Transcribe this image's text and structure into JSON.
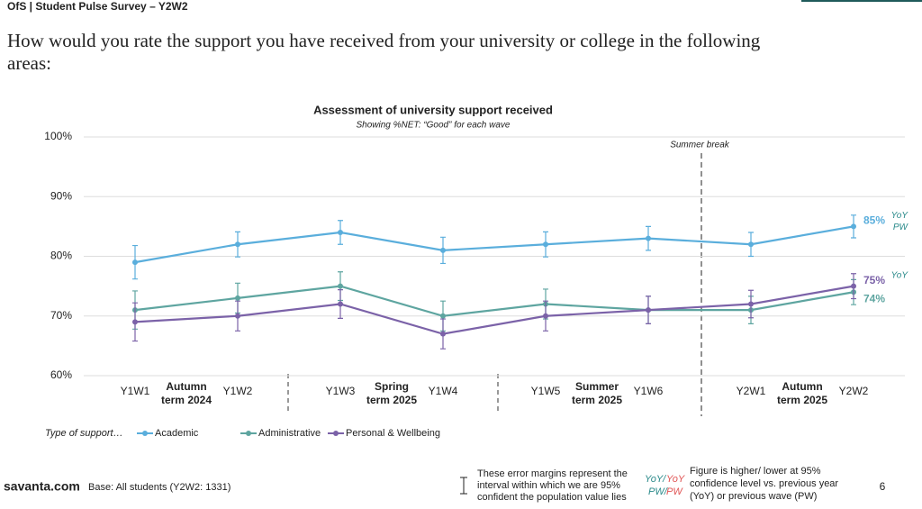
{
  "header": {
    "title": "OfS | Student Pulse Survey – Y2W2",
    "question": [
      "How would you rate the support you have received from your university or college in the following",
      "areas:"
    ]
  },
  "chart_data": {
    "type": "line",
    "title": "Assessment of university support received",
    "subtitle": "Showing %NET: “Good” for each wave",
    "categories": [
      "Y1W1",
      "Y1W2",
      "Y1W3",
      "Y1W4",
      "Y1W5",
      "Y1W6",
      "Y2W1",
      "Y2W2"
    ],
    "groups": [
      {
        "lines": [
          "Autumn",
          "term 2024"
        ]
      },
      {
        "lines": [
          "Spring",
          "term 2025"
        ]
      },
      {
        "lines": [
          "Summer",
          "term 2025"
        ]
      },
      {
        "lines": [
          "Autumn",
          "term 2025"
        ]
      }
    ],
    "break_label": "Summer break",
    "legend_title": "Type of support…",
    "series": [
      {
        "name": "Academic",
        "color": "#5aaedc",
        "values": [
          79,
          82,
          84,
          81,
          82,
          83,
          82,
          85
        ],
        "errors": [
          2.8,
          2.1,
          2.0,
          2.2,
          2.1,
          2.0,
          2.0,
          1.9
        ],
        "value_labels": [
          null,
          null,
          null,
          null,
          null,
          null,
          null,
          "85%"
        ],
        "significance": [
          "YoY",
          "PW"
        ]
      },
      {
        "name": "Administrative",
        "color": "#5ea5a0",
        "values": [
          71,
          73,
          75,
          70,
          72,
          71,
          71,
          74
        ],
        "errors": [
          3.2,
          2.5,
          2.4,
          2.5,
          2.5,
          2.3,
          2.3,
          2.1
        ],
        "value_labels": [
          null,
          null,
          null,
          null,
          null,
          null,
          null,
          "74%"
        ],
        "significance": []
      },
      {
        "name": "Personal & Wellbeing",
        "color": "#7b62a8",
        "values": [
          69,
          70,
          72,
          67,
          70,
          71,
          72,
          75
        ],
        "errors": [
          3.2,
          2.5,
          2.4,
          2.5,
          2.5,
          2.3,
          2.3,
          2.1
        ],
        "value_labels": [
          null,
          null,
          null,
          null,
          null,
          null,
          null,
          "75%"
        ],
        "significance": [
          "YoY"
        ]
      }
    ],
    "ylim": [
      60,
      100
    ],
    "yticks": [
      {
        "value": 60,
        "label": "60%"
      },
      {
        "value": 70,
        "label": "70%"
      },
      {
        "value": 80,
        "label": "80%"
      },
      {
        "value": 90,
        "label": "90%"
      },
      {
        "value": 100,
        "label": "100%"
      }
    ],
    "grid": true
  },
  "footer": {
    "brand": "savanta.com",
    "base": "Base: All students (Y2W2: 1331)",
    "error_note": [
      "These error margins represent the",
      "interval within which we are 95%",
      "confident the population value lies"
    ],
    "sig_higher": [
      "YoY/",
      "PW/"
    ],
    "sig_lower": [
      "YoY",
      "PW"
    ],
    "sig_note": [
      "Figure is higher/ lower at 95%",
      "confidence level vs. previous year",
      "(YoY) or previous wave (PW)"
    ],
    "page": "6"
  }
}
